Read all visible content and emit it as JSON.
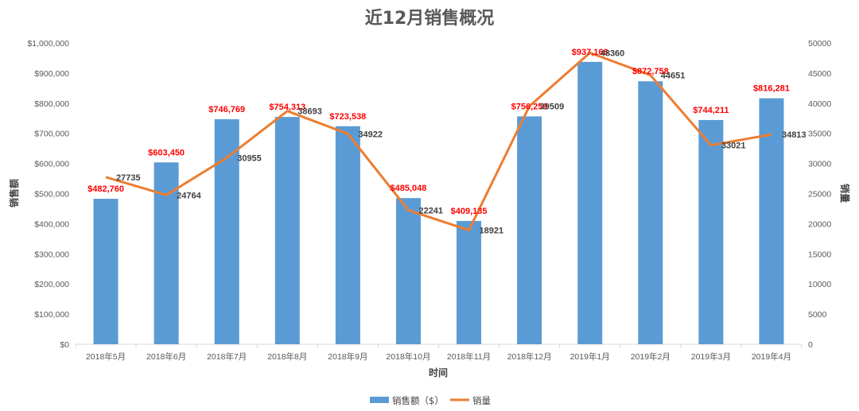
{
  "chart_data": {
    "type": "bar",
    "title": "近12月销售概况",
    "xlabel": "时间",
    "ylabel": "销售额",
    "y2label": "销量",
    "categories": [
      "2018年5月",
      "2018年6月",
      "2018年7月",
      "2018年8月",
      "2018年9月",
      "2018年10月",
      "2018年11月",
      "2018年12月",
      "2019年1月",
      "2019年2月",
      "2019年3月",
      "2019年4月"
    ],
    "series": [
      {
        "name": "销售额（$）",
        "type": "bar",
        "axis": "left",
        "values": [
          482760,
          603450,
          746769,
          754313,
          723538,
          485048,
          409135,
          756259,
          937166,
          872758,
          744211,
          816281
        ],
        "labels": [
          "$482,760",
          "$603,450",
          "$746,769",
          "$754,313",
          "$723,538",
          "$485,048",
          "$409,135",
          "$756,259",
          "$937,166",
          "$872,758",
          "$744,211",
          "$816,281"
        ],
        "color": "#5b9bd5"
      },
      {
        "name": "销量",
        "type": "line",
        "axis": "right",
        "values": [
          27735,
          24764,
          30955,
          38693,
          34922,
          22241,
          18921,
          39509,
          48360,
          44651,
          33021,
          34813
        ],
        "labels": [
          "27735",
          "24764",
          "30955",
          "38693",
          "34922",
          "22241",
          "18921",
          "39509",
          "48360",
          "44651",
          "33021",
          "34813"
        ],
        "color": "#ed7d31"
      }
    ],
    "ylim": [
      0,
      1000000
    ],
    "y_ticks": [
      "$0",
      "$100,000",
      "$200,000",
      "$300,000",
      "$400,000",
      "$500,000",
      "$600,000",
      "$700,000",
      "$800,000",
      "$900,000",
      "$1,000,000"
    ],
    "y2lim": [
      0,
      50000
    ],
    "y2_ticks": [
      "0",
      "5000",
      "10000",
      "15000",
      "20000",
      "25000",
      "30000",
      "35000",
      "40000",
      "45000",
      "50000"
    ],
    "grid": false,
    "legend_position": "bottom",
    "bar_label_color": "#ff0000"
  }
}
